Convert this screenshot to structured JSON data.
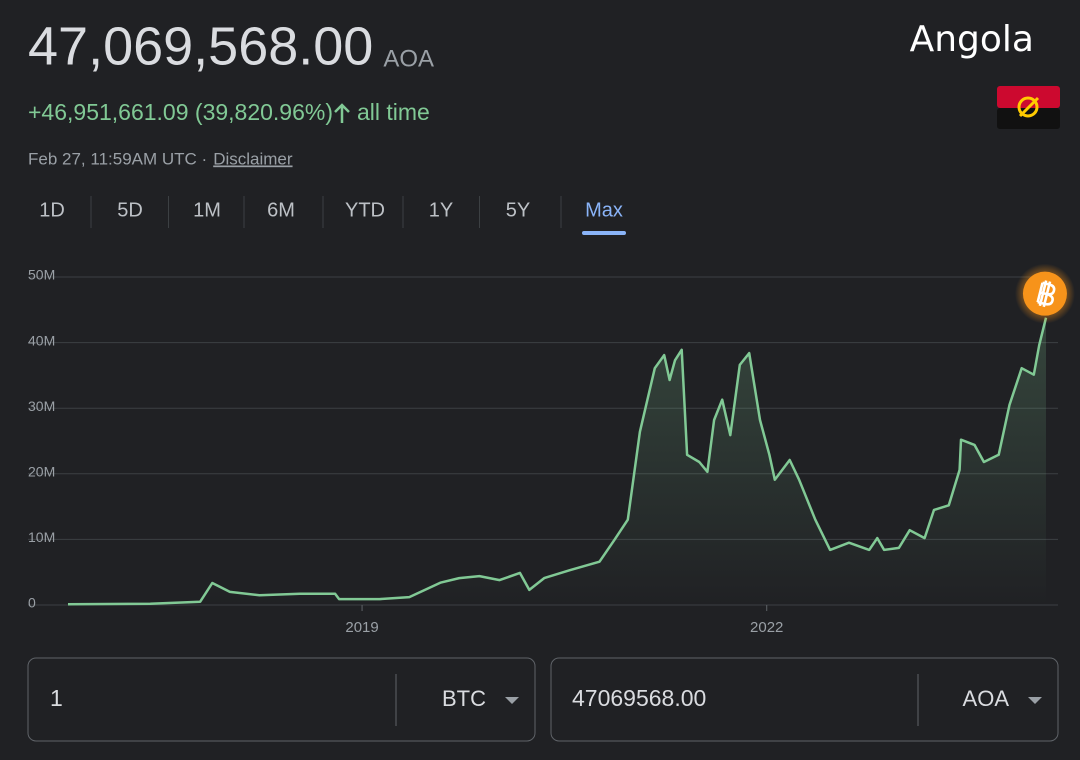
{
  "header": {
    "price": "47,069,568.00",
    "currency": "AOA",
    "change": "+46,951,661.09 (39,820.96%)",
    "period": "all time",
    "timestamp": "Feb 27, 11:59AM UTC ·",
    "disclaimer": "Disclaimer",
    "country": "Angola"
  },
  "ranges": [
    "1D",
    "5D",
    "1M",
    "6M",
    "YTD",
    "1Y",
    "5Y",
    "Max"
  ],
  "selected_range": 7,
  "chart_data": {
    "type": "line",
    "color": "#81c995",
    "grid": true,
    "xlim": [
      2016.82,
      2024.1
    ],
    "xticks": [
      2019,
      2022
    ],
    "ylim": [
      0,
      50000000
    ],
    "yticks": [
      {
        "value": 0,
        "label": "0"
      },
      {
        "value": 10000000,
        "label": "10M"
      },
      {
        "value": 20000000,
        "label": "20M"
      },
      {
        "value": 30000000,
        "label": "30M"
      },
      {
        "value": 40000000,
        "label": "40M"
      },
      {
        "value": 50000000,
        "label": "50M"
      }
    ],
    "x": [
      2016.82,
      2017.43,
      2017.8,
      2017.89,
      2018.02,
      2018.24,
      2018.54,
      2018.8,
      2018.83,
      2019.13,
      2019.35,
      2019.58,
      2019.72,
      2019.87,
      2020.02,
      2020.17,
      2020.24,
      2020.35,
      2020.54,
      2020.76,
      2020.87,
      2020.97,
      2021.06,
      2021.17,
      2021.24,
      2021.28,
      2021.32,
      2021.37,
      2021.41,
      2021.5,
      2021.56,
      2021.61,
      2021.67,
      2021.73,
      2021.8,
      2021.87,
      2021.95,
      2022.02,
      2022.06,
      2022.17,
      2022.24,
      2022.36,
      2022.47,
      2022.61,
      2022.76,
      2022.82,
      2022.87,
      2022.98,
      2023.06,
      2023.17,
      2023.24,
      2023.35,
      2023.43,
      2023.44,
      2023.54,
      2023.61,
      2023.72,
      2023.8,
      2023.89,
      2023.98,
      2024.02,
      2024.07
    ],
    "values": [
      100000,
      200000,
      500000,
      3350000,
      2000000,
      1500000,
      1700000,
      1700000,
      900000,
      900000,
      1200000,
      3400000,
      4100000,
      4400000,
      3800000,
      4900000,
      2300000,
      4100000,
      5300000,
      6600000,
      9900000,
      13000000,
      26400000,
      36100000,
      38100000,
      34300000,
      37300000,
      38900000,
      22900000,
      21800000,
      20300000,
      28200000,
      31300000,
      25900000,
      36600000,
      38400000,
      28200000,
      22900000,
      19100000,
      22100000,
      19100000,
      13000000,
      8400000,
      9500000,
      8400000,
      10200000,
      8400000,
      8700000,
      11400000,
      10200000,
      14500000,
      15200000,
      20600000,
      25200000,
      24400000,
      21800000,
      22900000,
      30500000,
      36100000,
      35100000,
      39600000,
      43800000
    ]
  },
  "converter": {
    "from_amount": "1",
    "from_currency": "BTC",
    "to_amount": "47069568.00",
    "to_currency": "AOA"
  }
}
